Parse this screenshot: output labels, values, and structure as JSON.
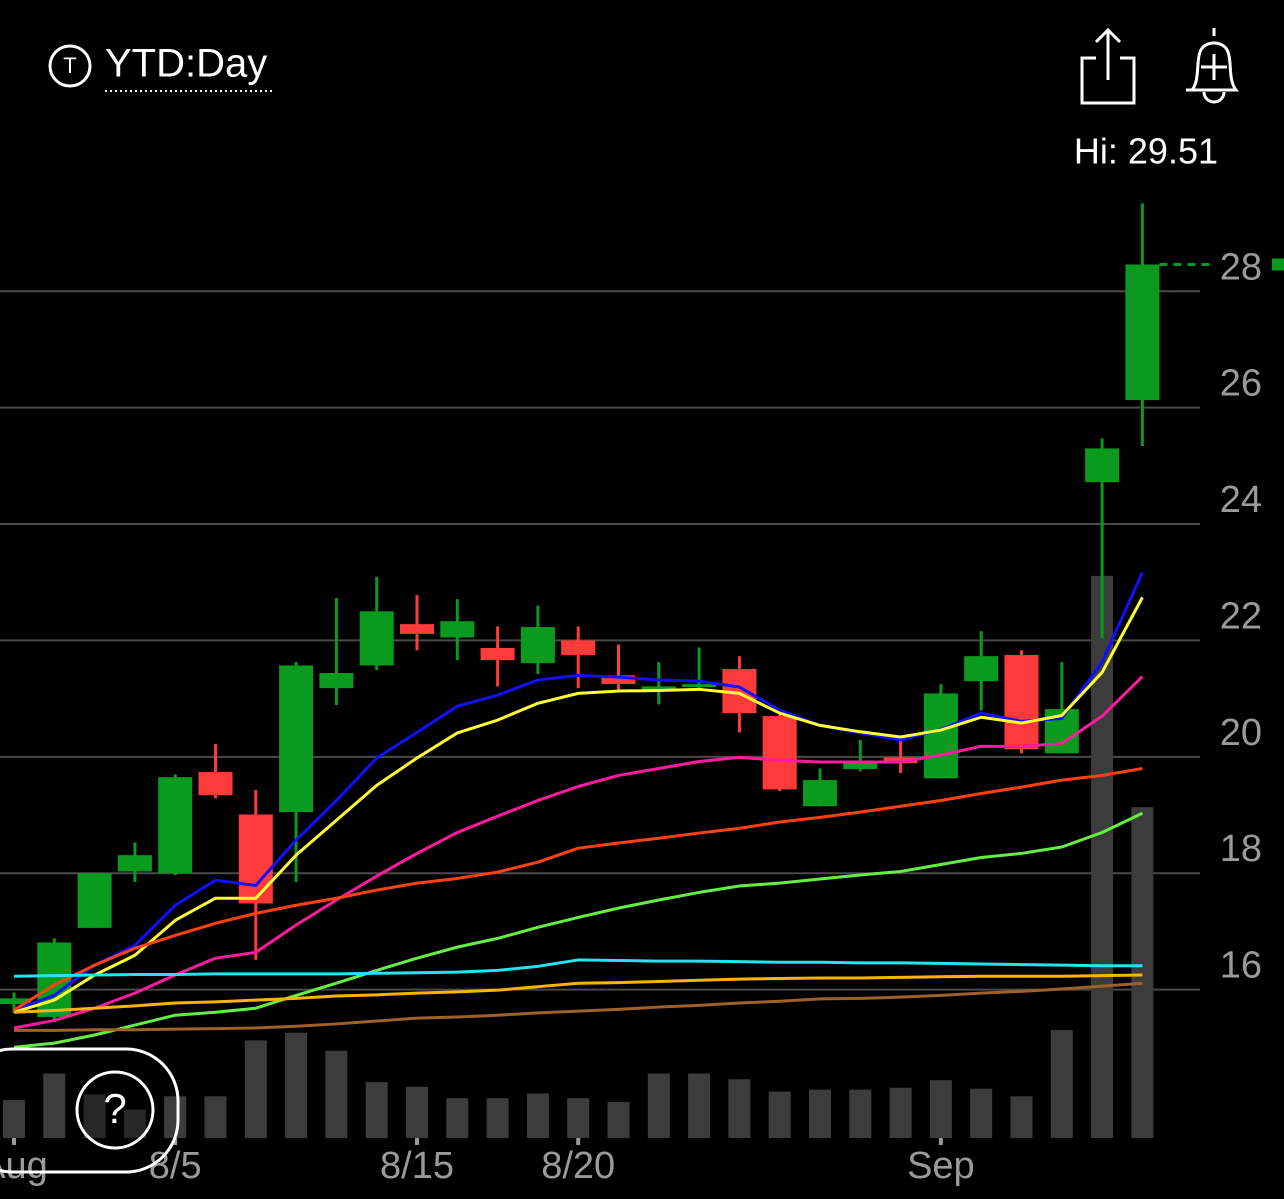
{
  "header": {
    "ticker_icon": "T",
    "period": "YTD:Day",
    "help_button": "?"
  },
  "chart_data": {
    "type": "candlestick",
    "annotations": [
      {
        "text": "Hi: 29.51"
      }
    ],
    "categories": [
      "Aug",
      null,
      null,
      null,
      "8/5",
      null,
      null,
      null,
      null,
      null,
      "8/15",
      null,
      null,
      null,
      "8/20",
      null,
      null,
      null,
      null,
      null,
      null,
      null,
      null,
      "Sep",
      null,
      null,
      null,
      null,
      null
    ],
    "open": [
      15.75,
      15.53,
      17.06,
      18.03,
      18.0,
      19.74,
      19.01,
      19.05,
      21.18,
      21.57,
      22.28,
      22.05,
      21.87,
      21.61,
      22.0,
      21.4,
      21.18,
      21.21,
      21.51,
      20.7,
      19.15,
      19.79,
      19.99,
      19.63,
      21.3,
      21.75,
      20.06,
      24.72,
      26.13
    ],
    "high": [
      15.95,
      16.88,
      18.0,
      18.53,
      19.7,
      20.22,
      19.43,
      21.63,
      22.73,
      23.09,
      22.78,
      22.71,
      22.24,
      22.6,
      22.24,
      21.93,
      21.63,
      21.88,
      21.73,
      20.73,
      19.8,
      20.29,
      20.29,
      21.25,
      22.16,
      21.83,
      21.63,
      25.47,
      29.51
    ],
    "low": [
      15.6,
      15.44,
      17.06,
      17.85,
      17.97,
      19.29,
      16.51,
      17.85,
      20.89,
      21.49,
      21.83,
      21.66,
      21.21,
      21.42,
      21.18,
      21.11,
      20.9,
      21.14,
      20.42,
      19.41,
      19.15,
      19.75,
      19.72,
      19.63,
      20.8,
      20.06,
      20.06,
      22.04,
      25.34
    ],
    "close": [
      15.85,
      16.81,
      18.0,
      18.31,
      19.65,
      19.34,
      17.48,
      21.57,
      21.44,
      22.5,
      22.11,
      22.33,
      21.66,
      22.23,
      21.75,
      21.25,
      21.21,
      21.25,
      20.75,
      19.44,
      19.6,
      19.89,
      19.89,
      21.09,
      21.73,
      20.13,
      20.82,
      25.3,
      28.46
    ],
    "volume": [
      40,
      68,
      46,
      30,
      44,
      44,
      103,
      111,
      92,
      59,
      54,
      42,
      42,
      47,
      42,
      38,
      68,
      68,
      62,
      49,
      51,
      51,
      53,
      61,
      52,
      44,
      114,
      593,
      349
    ],
    "volume_lim": [
      0,
      1000
    ],
    "up_color": "#0a9a1e",
    "down_color": "#ff3a3a",
    "volume_color": "#3c3c3c",
    "series": [
      {
        "color": "#1010ff",
        "values": [
          15.65,
          15.9,
          16.42,
          16.76,
          17.45,
          17.88,
          17.79,
          18.57,
          19.25,
          19.98,
          20.42,
          20.87,
          21.06,
          21.32,
          21.4,
          21.37,
          21.32,
          21.3,
          21.2,
          20.8,
          20.54,
          20.41,
          20.29,
          20.47,
          20.75,
          20.61,
          20.66,
          21.63,
          23.17
        ]
      },
      {
        "color": "#ffff33",
        "values": [
          15.61,
          15.82,
          16.25,
          16.59,
          17.19,
          17.57,
          17.57,
          18.31,
          18.91,
          19.51,
          19.98,
          20.41,
          20.63,
          20.92,
          21.09,
          21.13,
          21.14,
          21.16,
          21.09,
          20.75,
          20.54,
          20.43,
          20.34,
          20.46,
          20.68,
          20.58,
          20.71,
          21.45,
          22.74
        ]
      },
      {
        "color": "#ff1aa0",
        "values": [
          15.34,
          15.47,
          15.68,
          15.94,
          16.25,
          16.54,
          16.64,
          17.11,
          17.54,
          17.95,
          18.34,
          18.7,
          18.98,
          19.25,
          19.49,
          19.68,
          19.8,
          19.92,
          19.99,
          19.94,
          19.91,
          19.91,
          19.91,
          20.03,
          20.18,
          20.18,
          20.23,
          20.7,
          21.38
        ]
      },
      {
        "color": "#ff4010",
        "values": [
          15.65,
          16.08,
          16.42,
          16.71,
          16.93,
          17.14,
          17.31,
          17.45,
          17.57,
          17.71,
          17.83,
          17.91,
          18.02,
          18.19,
          18.43,
          18.52,
          18.6,
          18.69,
          18.77,
          18.88,
          18.96,
          19.05,
          19.15,
          19.25,
          19.37,
          19.48,
          19.6,
          19.68,
          19.8
        ]
      },
      {
        "color": "#66ee44",
        "values": [
          15.01,
          15.08,
          15.22,
          15.39,
          15.56,
          15.61,
          15.68,
          15.9,
          16.11,
          16.33,
          16.54,
          16.73,
          16.88,
          17.07,
          17.24,
          17.4,
          17.54,
          17.67,
          17.78,
          17.83,
          17.9,
          17.97,
          18.03,
          18.15,
          18.27,
          18.34,
          18.45,
          18.7,
          19.03
        ]
      },
      {
        "color": "#22e5f0",
        "values": [
          16.23,
          16.24,
          16.25,
          16.26,
          16.26,
          16.27,
          16.27,
          16.27,
          16.27,
          16.28,
          16.29,
          16.3,
          16.33,
          16.4,
          16.51,
          16.5,
          16.49,
          16.49,
          16.48,
          16.47,
          16.47,
          16.46,
          16.46,
          16.45,
          16.44,
          16.43,
          16.42,
          16.41,
          16.41
        ]
      },
      {
        "color": "#ffb400",
        "values": [
          15.61,
          15.64,
          15.68,
          15.72,
          15.77,
          15.79,
          15.82,
          15.85,
          15.89,
          15.91,
          15.94,
          15.96,
          15.99,
          16.05,
          16.11,
          16.12,
          16.14,
          16.16,
          16.18,
          16.19,
          16.2,
          16.2,
          16.21,
          16.22,
          16.23,
          16.23,
          16.23,
          16.24,
          16.25
        ]
      },
      {
        "color": "#a0602a",
        "values": [
          15.3,
          15.3,
          15.31,
          15.31,
          15.32,
          15.33,
          15.34,
          15.37,
          15.41,
          15.46,
          15.51,
          15.53,
          15.56,
          15.6,
          15.63,
          15.66,
          15.7,
          15.73,
          15.77,
          15.8,
          15.84,
          15.85,
          15.87,
          15.9,
          15.94,
          15.97,
          16.01,
          16.06,
          16.11
        ]
      }
    ],
    "ylim": [
      13.45,
      29.74
    ],
    "yticks": [
      16,
      18,
      20,
      22,
      24,
      26,
      28
    ],
    "grid": true
  }
}
